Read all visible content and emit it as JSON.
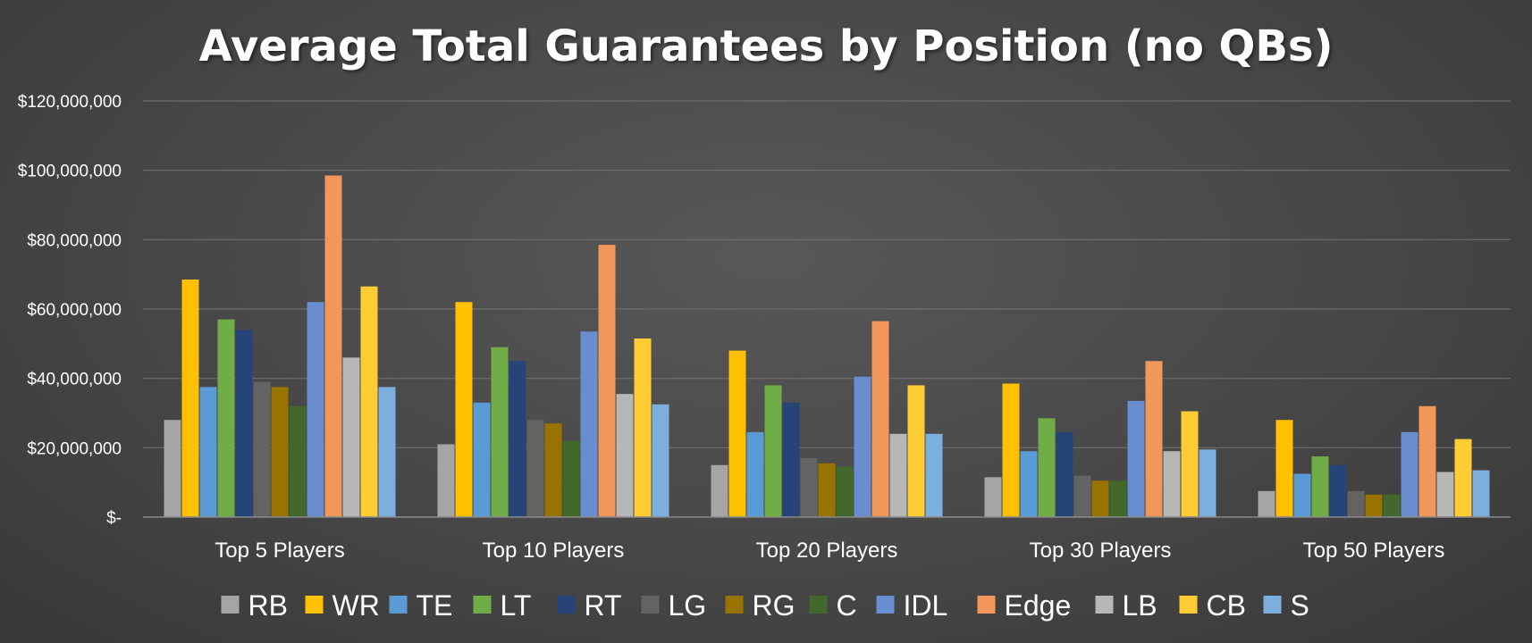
{
  "chart_data": {
    "type": "bar",
    "title": "Average Total Guarantees by Position (no QBs)",
    "xlabel": "",
    "ylabel": "",
    "ylim": [
      0,
      120000000
    ],
    "y_ticks": [
      0,
      20000000,
      40000000,
      60000000,
      80000000,
      100000000,
      120000000
    ],
    "y_tick_labels": [
      "$-",
      "$20,000,000",
      "$40,000,000",
      "$60,000,000",
      "$80,000,000",
      "$100,000,000",
      "$120,000,000"
    ],
    "grid": true,
    "legend_position": "bottom",
    "categories": [
      "Top 5 Players",
      "Top 10 Players",
      "Top 20 Players",
      "Top 30 Players",
      "Top 50 Players"
    ],
    "series": [
      {
        "name": "RB",
        "color": "#a5a5a5",
        "values": [
          28000000,
          21000000,
          15000000,
          11500000,
          7500000
        ]
      },
      {
        "name": "WR",
        "color": "#ffc000",
        "values": [
          68500000,
          62000000,
          48000000,
          38500000,
          28000000
        ]
      },
      {
        "name": "TE",
        "color": "#5b9bd5",
        "values": [
          37500000,
          33000000,
          24500000,
          19000000,
          12500000
        ]
      },
      {
        "name": "LT",
        "color": "#70ad47",
        "values": [
          57000000,
          49000000,
          38000000,
          28500000,
          17500000
        ]
      },
      {
        "name": "RT",
        "color": "#264478",
        "values": [
          54000000,
          45000000,
          33000000,
          24500000,
          15000000
        ]
      },
      {
        "name": "LG",
        "color": "#636363",
        "values": [
          39000000,
          28000000,
          17000000,
          12000000,
          7500000
        ]
      },
      {
        "name": "RG",
        "color": "#997300",
        "values": [
          37500000,
          27000000,
          15500000,
          10500000,
          6500000
        ]
      },
      {
        "name": "C",
        "color": "#43682b",
        "values": [
          32000000,
          22000000,
          14500000,
          10500000,
          6500000
        ]
      },
      {
        "name": "IDL",
        "color": "#698ed0",
        "values": [
          62000000,
          53500000,
          40500000,
          33500000,
          24500000
        ]
      },
      {
        "name": "Edge",
        "color": "#f1975a",
        "values": [
          98500000,
          78500000,
          56500000,
          45000000,
          32000000
        ]
      },
      {
        "name": "LB",
        "color": "#b7b7b7",
        "values": [
          46000000,
          35500000,
          24000000,
          19000000,
          13000000
        ]
      },
      {
        "name": "CB",
        "color": "#ffcd33",
        "values": [
          66500000,
          51500000,
          38000000,
          30500000,
          22500000
        ]
      },
      {
        "name": "S",
        "color": "#7cafdd",
        "values": [
          37500000,
          32500000,
          24000000,
          19500000,
          13500000
        ]
      }
    ]
  }
}
